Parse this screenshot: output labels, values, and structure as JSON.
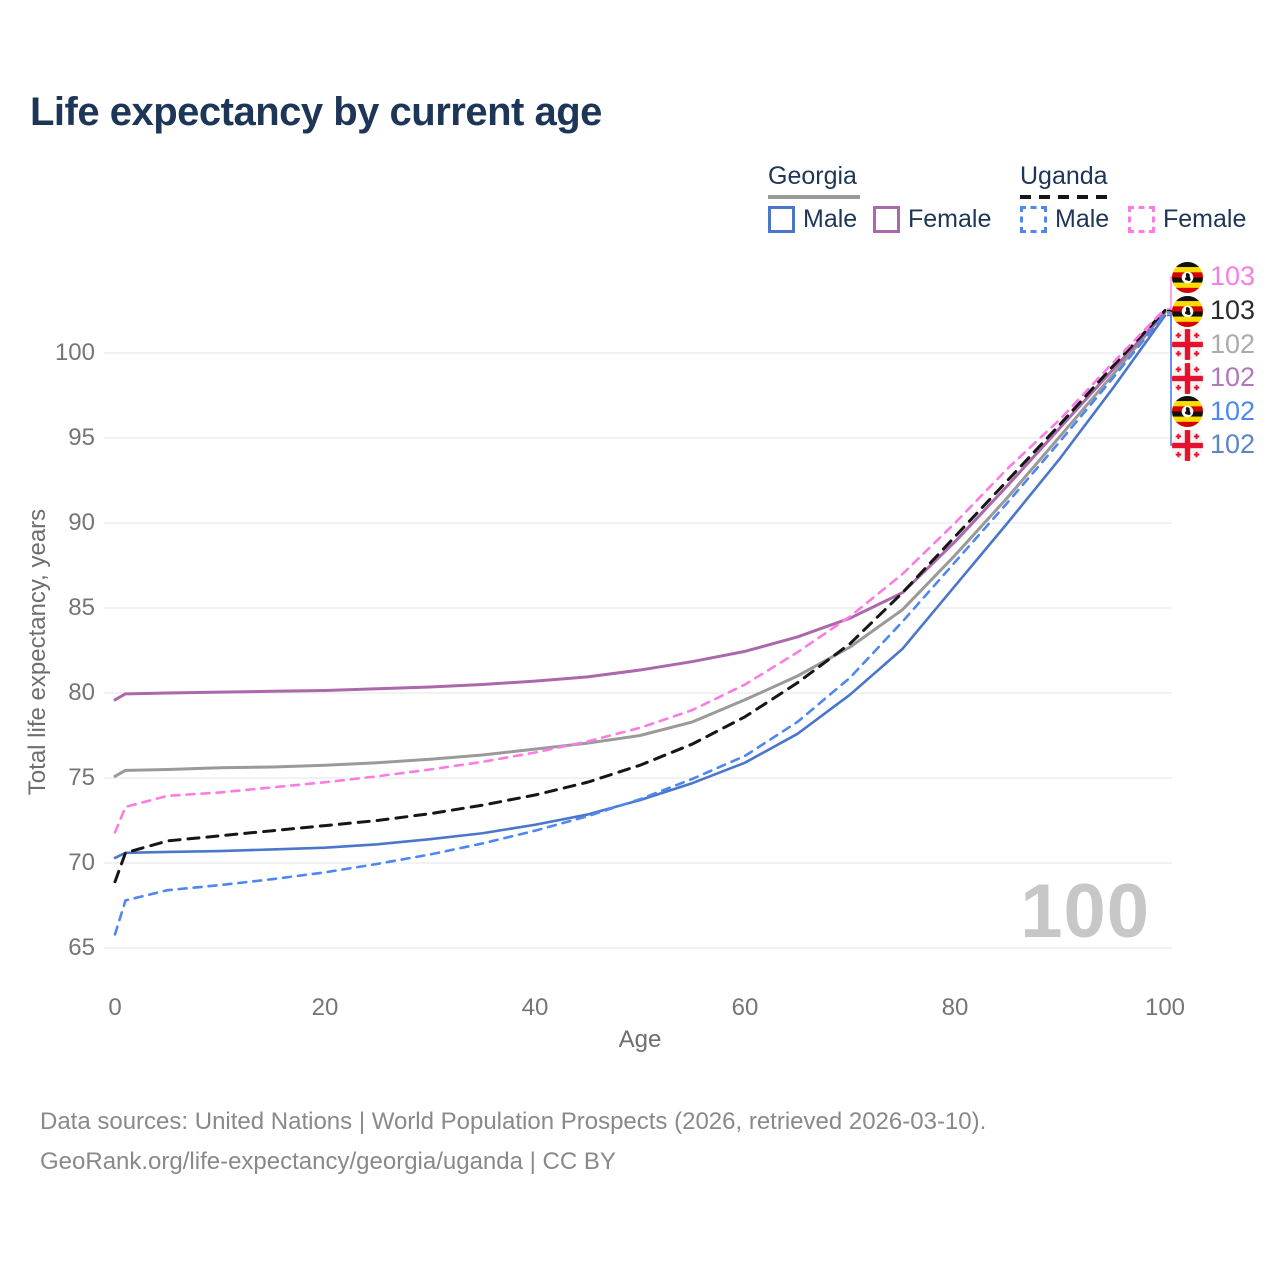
{
  "title": "Life expectancy by current age",
  "legend": {
    "groups": [
      {
        "label": "Georgia",
        "underline_style": "solid",
        "underline_color": "#9a9a9a",
        "items": [
          {
            "label": "Male",
            "color": "#4a77c9",
            "dash": false
          },
          {
            "label": "Female",
            "color": "#ab68ab",
            "dash": false
          }
        ]
      },
      {
        "label": "Uganda",
        "underline_style": "dashed",
        "underline_color": "#161616",
        "items": [
          {
            "label": "Male",
            "color": "#4e87f2",
            "dash": true
          },
          {
            "label": "Female",
            "color": "#fc7ce4",
            "dash": true
          }
        ]
      }
    ]
  },
  "axis": {
    "xlabel": "Age",
    "ylabel": "Total life expectancy, years"
  },
  "watermark": "100",
  "footer": {
    "line1": "Data sources: United Nations | World Population Prospects (2026, retrieved 2026-03-10).",
    "line2": "GeoRank.org/life-expectancy/georgia/uganda | CC BY"
  },
  "chart_data": {
    "type": "line",
    "title": "Life expectancy by current age",
    "xlabel": "Age",
    "ylabel": "Total life expectancy, years",
    "xlim": [
      0,
      100
    ],
    "ylim": [
      64,
      104
    ],
    "x_ticks": [
      0,
      20,
      40,
      60,
      80,
      100
    ],
    "y_ticks": [
      65,
      70,
      75,
      80,
      85,
      90,
      95,
      100
    ],
    "grid": "horizontal",
    "gridline_color": "#ebebeb",
    "legend_position": "top-right",
    "x": [
      0,
      1,
      5,
      10,
      15,
      20,
      25,
      30,
      35,
      40,
      45,
      50,
      55,
      60,
      65,
      70,
      75,
      80,
      85,
      90,
      95,
      100
    ],
    "series": [
      {
        "key": "georgia-total",
        "name": "Georgia",
        "country": "Georgia",
        "sex": "Both",
        "color": "#9a9a9a",
        "dash": "solid",
        "width": 3,
        "values": [
          75.1,
          75.45,
          75.5,
          75.6,
          75.65,
          75.75,
          75.9,
          76.1,
          76.35,
          76.7,
          77.05,
          77.5,
          78.3,
          79.6,
          81.0,
          82.7,
          84.9,
          88.1,
          91.5,
          95.1,
          98.7,
          102.4
        ],
        "end_label": {
          "text": "102",
          "color": "#ababab",
          "flag": "georgia",
          "row": 2
        }
      },
      {
        "key": "georgia-male",
        "name": "Georgia Male",
        "country": "Georgia",
        "sex": "Male",
        "color": "#4a77c9",
        "dash": "solid",
        "width": 2.6,
        "values": [
          70.3,
          70.6,
          70.65,
          70.7,
          70.8,
          70.9,
          71.1,
          71.4,
          71.75,
          72.25,
          72.85,
          73.7,
          74.7,
          75.9,
          77.6,
          79.9,
          82.6,
          86.3,
          90.0,
          93.8,
          97.9,
          102.2
        ],
        "end_label": {
          "text": "102",
          "color": "#5c84c9",
          "flag": "georgia",
          "row": 5
        }
      },
      {
        "key": "georgia-female",
        "name": "Georgia Female",
        "country": "Georgia",
        "sex": "Female",
        "color": "#ab68ab",
        "dash": "solid",
        "width": 3,
        "values": [
          79.6,
          79.95,
          80.0,
          80.05,
          80.1,
          80.15,
          80.25,
          80.35,
          80.5,
          80.7,
          80.95,
          81.35,
          81.85,
          82.45,
          83.3,
          84.4,
          85.9,
          88.9,
          92.2,
          95.6,
          99.0,
          102.4
        ],
        "end_label": {
          "text": "102",
          "color": "#b279b8",
          "flag": "georgia",
          "row": 3
        }
      },
      {
        "key": "uganda-total",
        "name": "Uganda",
        "country": "Uganda",
        "sex": "Both",
        "color": "#161616",
        "dash": "11 8",
        "width": 3,
        "values": [
          68.9,
          70.6,
          71.3,
          71.6,
          71.9,
          72.2,
          72.5,
          72.9,
          73.4,
          74.0,
          74.75,
          75.75,
          77.0,
          78.6,
          80.6,
          82.9,
          85.9,
          89.2,
          92.5,
          95.8,
          99.2,
          102.5
        ],
        "end_label": {
          "text": "103",
          "color": "#2b2b2b",
          "flag": "uganda",
          "row": 1
        }
      },
      {
        "key": "uganda-male",
        "name": "Uganda Male",
        "country": "Uganda",
        "sex": "Male",
        "color": "#4e87f2",
        "dash": "8 7",
        "width": 2.6,
        "values": [
          65.8,
          67.8,
          68.4,
          68.7,
          69.05,
          69.45,
          69.95,
          70.5,
          71.15,
          71.9,
          72.75,
          73.75,
          74.95,
          76.3,
          78.3,
          80.9,
          84.2,
          87.7,
          91.2,
          94.8,
          98.5,
          102.3
        ],
        "end_label": {
          "text": "102",
          "color": "#4e87f2",
          "flag": "uganda",
          "row": 4
        }
      },
      {
        "key": "uganda-female",
        "name": "Uganda Female",
        "country": "Uganda",
        "sex": "Female",
        "color": "#fc7ce4",
        "dash": "8 7",
        "width": 2.6,
        "values": [
          71.8,
          73.3,
          73.95,
          74.15,
          74.45,
          74.75,
          75.1,
          75.5,
          75.95,
          76.5,
          77.15,
          77.95,
          79.0,
          80.5,
          82.4,
          84.5,
          87.0,
          90.0,
          93.2,
          96.1,
          99.4,
          102.6
        ],
        "end_label": {
          "text": "103",
          "color": "#fc7ce4",
          "flag": "uganda",
          "row": 0
        }
      }
    ]
  }
}
